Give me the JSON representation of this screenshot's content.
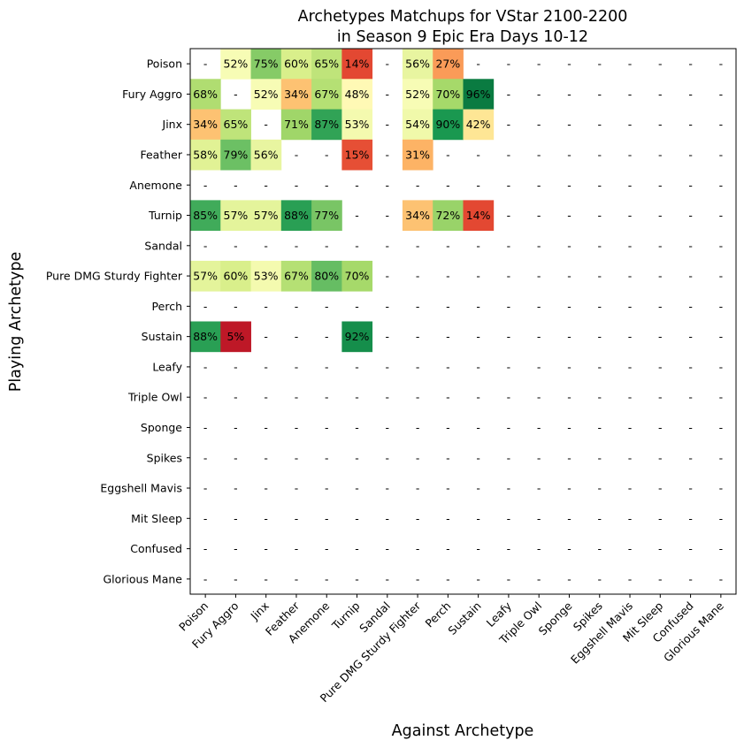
{
  "chart_data": {
    "type": "heatmap",
    "title": "Archetypes Matchups for VStar 2100-2200",
    "subtitle": "in Season 9 Epic Era Days 10-12",
    "xlabel": "Against Archetype",
    "ylabel": "Playing Archetype",
    "colormap": "RdYlGn",
    "value_range": [
      0,
      100
    ],
    "missing_label": "-",
    "rows": [
      "Poison",
      "Fury Aggro",
      "Jinx",
      "Feather",
      "Anemone",
      "Turnip",
      "Sandal",
      "Pure DMG Sturdy Fighter",
      "Perch",
      "Sustain",
      "Leafy",
      "Triple Owl",
      "Sponge",
      "Spikes",
      "Eggshell Mavis",
      "Mit Sleep",
      "Confused",
      "Glorious Mane"
    ],
    "columns": [
      "Poison",
      "Fury Aggro",
      "Jinx",
      "Feather",
      "Anemone",
      "Turnip",
      "Sandal",
      "Pure DMG Sturdy Fighter",
      "Perch",
      "Sustain",
      "Leafy",
      "Triple Owl",
      "Sponge",
      "Spikes",
      "Eggshell Mavis",
      "Mit Sleep",
      "Confused",
      "Glorious Mane"
    ],
    "values": [
      [
        null,
        52,
        75,
        60,
        65,
        14,
        null,
        56,
        27,
        null,
        null,
        null,
        null,
        null,
        null,
        null,
        null,
        null
      ],
      [
        68,
        null,
        52,
        34,
        67,
        48,
        null,
        52,
        70,
        96,
        null,
        null,
        null,
        null,
        null,
        null,
        null,
        null
      ],
      [
        34,
        65,
        null,
        71,
        87,
        53,
        null,
        54,
        90,
        42,
        null,
        null,
        null,
        null,
        null,
        null,
        null,
        null
      ],
      [
        58,
        79,
        56,
        null,
        null,
        15,
        null,
        31,
        null,
        null,
        null,
        null,
        null,
        null,
        null,
        null,
        null,
        null
      ],
      [
        null,
        null,
        null,
        null,
        null,
        null,
        null,
        null,
        null,
        null,
        null,
        null,
        null,
        null,
        null,
        null,
        null,
        null
      ],
      [
        85,
        57,
        57,
        88,
        77,
        null,
        null,
        34,
        72,
        14,
        null,
        null,
        null,
        null,
        null,
        null,
        null,
        null
      ],
      [
        null,
        null,
        null,
        null,
        null,
        null,
        null,
        null,
        null,
        null,
        null,
        null,
        null,
        null,
        null,
        null,
        null,
        null
      ],
      [
        57,
        60,
        53,
        67,
        80,
        70,
        null,
        null,
        null,
        null,
        null,
        null,
        null,
        null,
        null,
        null,
        null,
        null
      ],
      [
        null,
        null,
        null,
        null,
        null,
        null,
        null,
        null,
        null,
        null,
        null,
        null,
        null,
        null,
        null,
        null,
        null,
        null
      ],
      [
        88,
        5,
        null,
        null,
        null,
        92,
        null,
        null,
        null,
        null,
        null,
        null,
        null,
        null,
        null,
        null,
        null,
        null
      ],
      [
        null,
        null,
        null,
        null,
        null,
        null,
        null,
        null,
        null,
        null,
        null,
        null,
        null,
        null,
        null,
        null,
        null,
        null
      ],
      [
        null,
        null,
        null,
        null,
        null,
        null,
        null,
        null,
        null,
        null,
        null,
        null,
        null,
        null,
        null,
        null,
        null,
        null
      ],
      [
        null,
        null,
        null,
        null,
        null,
        null,
        null,
        null,
        null,
        null,
        null,
        null,
        null,
        null,
        null,
        null,
        null,
        null
      ],
      [
        null,
        null,
        null,
        null,
        null,
        null,
        null,
        null,
        null,
        null,
        null,
        null,
        null,
        null,
        null,
        null,
        null,
        null
      ],
      [
        null,
        null,
        null,
        null,
        null,
        null,
        null,
        null,
        null,
        null,
        null,
        null,
        null,
        null,
        null,
        null,
        null,
        null
      ],
      [
        null,
        null,
        null,
        null,
        null,
        null,
        null,
        null,
        null,
        null,
        null,
        null,
        null,
        null,
        null,
        null,
        null,
        null
      ],
      [
        null,
        null,
        null,
        null,
        null,
        null,
        null,
        null,
        null,
        null,
        null,
        null,
        null,
        null,
        null,
        null,
        null,
        null
      ],
      [
        null,
        null,
        null,
        null,
        null,
        null,
        null,
        null,
        null,
        null,
        null,
        null,
        null,
        null,
        null,
        null,
        null,
        null
      ]
    ]
  }
}
